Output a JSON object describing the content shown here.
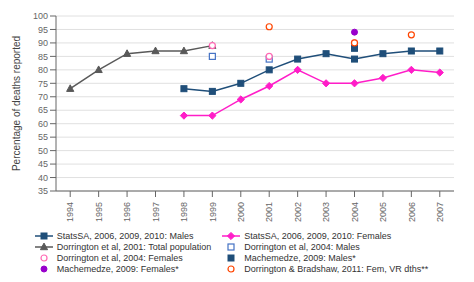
{
  "chart_data": {
    "type": "line",
    "ylabel": "Percentage of deaths reported",
    "xlim": [
      1993.5,
      2007.5
    ],
    "xticks": [
      1994,
      1995,
      1996,
      1997,
      1998,
      1999,
      2000,
      2001,
      2002,
      2003,
      2004,
      2005,
      2006,
      2007
    ],
    "ylim": [
      35,
      100
    ],
    "yticks": [
      35,
      40,
      45,
      50,
      55,
      60,
      65,
      70,
      75,
      80,
      85,
      90,
      95,
      100
    ],
    "grid": true,
    "legend": "bottom",
    "series": [
      {
        "name": "StatsSA, 2006, 2009, 2010: Males",
        "type": "line",
        "marker": "square",
        "color": "#1F4E79",
        "x": [
          1998,
          1999,
          2000,
          2001,
          2002,
          2003,
          2004,
          2005,
          2006,
          2007
        ],
        "values": [
          73,
          72,
          75,
          80,
          84,
          86,
          84,
          86,
          87,
          87
        ]
      },
      {
        "name": "StatsSA, 2006, 2009, 2010: Females",
        "type": "line",
        "marker": "diamond",
        "color": "#FF1DC8",
        "x": [
          1998,
          1999,
          2000,
          2001,
          2002,
          2003,
          2004,
          2005,
          2006,
          2007
        ],
        "values": [
          63,
          63,
          69,
          74,
          80,
          75,
          75,
          77,
          80,
          79
        ]
      },
      {
        "name": "Dorrington et al, 2001: Total population",
        "type": "line",
        "marker": "triangle",
        "color": "#595959",
        "x": [
          1994,
          1995,
          1996,
          1997,
          1998,
          1999
        ],
        "values": [
          73,
          80,
          86,
          87,
          87,
          89
        ]
      },
      {
        "name": "Dorrington et al, 2004: Males",
        "type": "scatter",
        "marker": "open square",
        "color": "#4472C4",
        "x": [
          1999,
          2001
        ],
        "values": [
          85,
          84
        ]
      },
      {
        "name": "Dorrington et al, 2004: Females",
        "type": "scatter",
        "marker": "open circle",
        "color": "#FF69B4",
        "x": [
          1999,
          2001,
          2004
        ],
        "values": [
          89,
          85,
          90
        ]
      },
      {
        "name": "Machemedze, 2009: Males*",
        "type": "scatter",
        "marker": "square",
        "color": "#1F4E79",
        "x": [
          2004
        ],
        "values": [
          88
        ]
      },
      {
        "name": "Machemedze, 2009: Females*",
        "type": "scatter",
        "marker": "circle",
        "color": "#9900CC",
        "x": [
          2004
        ],
        "values": [
          94
        ]
      },
      {
        "name": "Dorrington & Bradshaw, 2011: Fem, VR dths**",
        "type": "scatter",
        "marker": "open circle",
        "color": "#FF4500",
        "x": [
          2001,
          2004,
          2006
        ],
        "values": [
          96,
          90,
          93
        ]
      }
    ]
  }
}
